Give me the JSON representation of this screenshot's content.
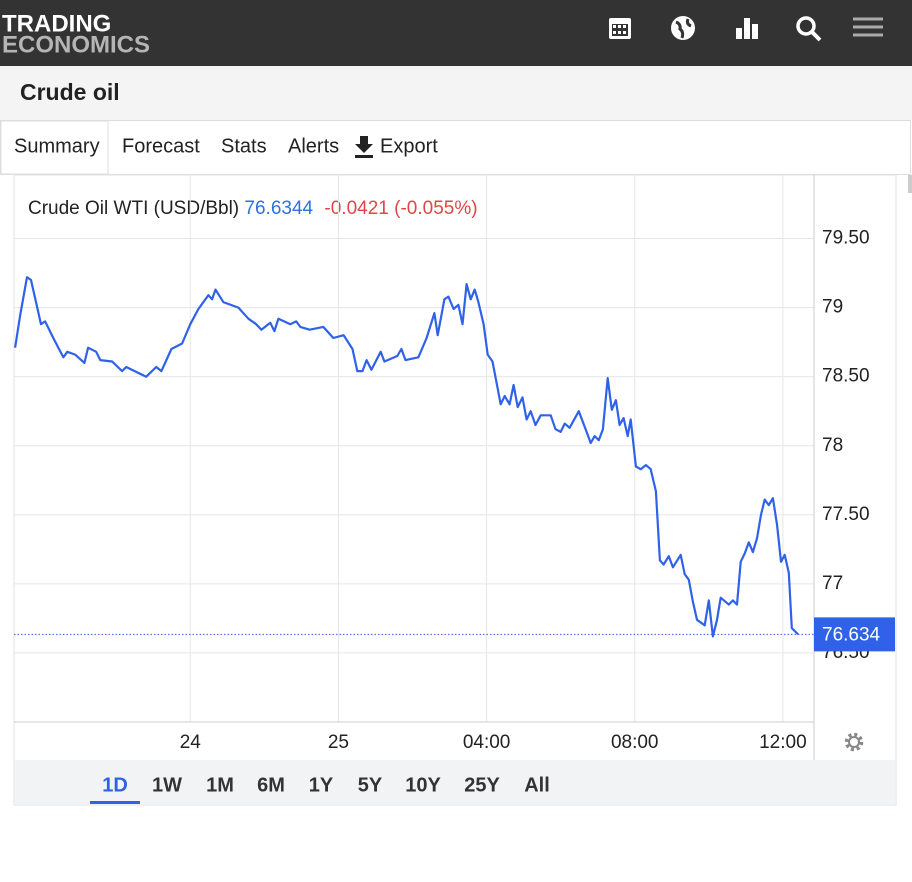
{
  "brand": {
    "line1": "TRADING",
    "line2": "ECONOMICS"
  },
  "page_title": "Crude oil",
  "tabs": [
    "Summary",
    "Forecast",
    "Stats",
    "Alerts",
    "Export"
  ],
  "selected_tab": 0,
  "ranges": [
    "1D",
    "1W",
    "1M",
    "6M",
    "1Y",
    "5Y",
    "10Y",
    "25Y",
    "All"
  ],
  "selected_range": 0,
  "chart_data": {
    "type": "line",
    "title": "Crude Oil WTI (USD/Bbl)",
    "last_value": 76.6344,
    "last_label": {
      "value": 76.6344,
      "label": "76.634"
    },
    "change": "-0.0421",
    "change_pct": "(-0.055%)",
    "xlim": [
      -8.76,
      12.84
    ],
    "xticks": [
      {
        "value": -4,
        "label": "24"
      },
      {
        "value": 0,
        "label": "25"
      },
      {
        "value": 4,
        "label": "04:00"
      },
      {
        "value": 8,
        "label": "08:00"
      },
      {
        "value": 12,
        "label": "12:00"
      }
    ],
    "ylim": [
      76.0,
      79.96
    ],
    "yticks": [
      {
        "value": 79.5,
        "label": "79.50"
      },
      79,
      {
        "value": 78.5,
        "label": "78.50"
      },
      78,
      {
        "value": 77.5,
        "label": "77.50"
      },
      77,
      {
        "value": 76.5,
        "label": "76.50"
      }
    ],
    "grid": true,
    "series": [
      {
        "name": "Crude Oil WTI",
        "color": "#2f62e8",
        "x": [
          -8.73,
          -8.59,
          -8.41,
          -8.3,
          -8.03,
          -7.92,
          -7.68,
          -7.43,
          -7.32,
          -7.11,
          -6.86,
          -6.76,
          -6.54,
          -6.43,
          -6.11,
          -5.84,
          -5.73,
          -5.35,
          -5.19,
          -4.92,
          -4.78,
          -4.51,
          -4.22,
          -4.0,
          -3.78,
          -3.51,
          -3.41,
          -3.32,
          -3.11,
          -2.7,
          -2.43,
          -2.22,
          -2.08,
          -1.84,
          -1.73,
          -1.62,
          -1.3,
          -1.14,
          -1.03,
          -0.78,
          -0.41,
          -0.14,
          0.14,
          0.38,
          0.51,
          0.65,
          0.76,
          0.89,
          1.14,
          1.24,
          1.59,
          1.7,
          1.81,
          2.16,
          2.38,
          2.59,
          2.68,
          2.86,
          2.97,
          3.11,
          3.24,
          3.35,
          3.46,
          3.57,
          3.68,
          3.78,
          3.92,
          4.03,
          4.16,
          4.38,
          4.49,
          4.62,
          4.73,
          4.84,
          4.97,
          5.08,
          5.19,
          5.32,
          5.46,
          5.73,
          5.86,
          6.0,
          6.11,
          6.24,
          6.49,
          6.7,
          6.81,
          6.92,
          7.03,
          7.14,
          7.27,
          7.38,
          7.49,
          7.59,
          7.7,
          7.81,
          7.89,
          8.03,
          8.16,
          8.3,
          8.43,
          8.57,
          8.68,
          8.78,
          8.92,
          9.03,
          9.24,
          9.35,
          9.46,
          9.57,
          9.68,
          9.89,
          10.0,
          10.11,
          10.22,
          10.32,
          10.54,
          10.65,
          10.76,
          10.86,
          10.97,
          11.08,
          11.19,
          11.3,
          11.41,
          11.51,
          11.62,
          11.73,
          11.84,
          11.95,
          12.05,
          12.16,
          12.24,
          12.41
        ],
        "values": [
          78.71,
          78.95,
          79.22,
          79.2,
          78.88,
          78.9,
          78.77,
          78.64,
          78.68,
          78.66,
          78.6,
          78.71,
          78.68,
          78.62,
          78.61,
          78.54,
          78.57,
          78.52,
          78.5,
          78.57,
          78.54,
          78.7,
          78.74,
          78.88,
          78.99,
          79.09,
          79.06,
          79.13,
          79.04,
          79.0,
          78.92,
          78.88,
          78.84,
          78.89,
          78.83,
          78.92,
          78.88,
          78.9,
          78.86,
          78.84,
          78.86,
          78.78,
          78.8,
          78.7,
          78.54,
          78.54,
          78.62,
          78.55,
          78.68,
          78.61,
          78.65,
          78.7,
          78.62,
          78.64,
          78.78,
          78.96,
          78.8,
          79.06,
          79.08,
          78.99,
          79.02,
          78.88,
          79.17,
          79.06,
          79.13,
          79.04,
          78.88,
          78.66,
          78.61,
          78.3,
          78.36,
          78.3,
          78.44,
          78.28,
          78.35,
          78.19,
          78.25,
          78.15,
          78.22,
          78.22,
          78.12,
          78.1,
          78.16,
          78.13,
          78.25,
          78.1,
          78.02,
          78.07,
          78.04,
          78.12,
          78.49,
          78.26,
          78.33,
          78.15,
          78.2,
          78.07,
          78.19,
          77.85,
          77.83,
          77.86,
          77.83,
          77.67,
          77.17,
          77.14,
          77.2,
          77.12,
          77.21,
          77.07,
          77.03,
          76.87,
          76.74,
          76.7,
          76.88,
          76.62,
          76.74,
          76.9,
          76.85,
          76.88,
          76.85,
          77.16,
          77.22,
          77.3,
          77.23,
          77.33,
          77.5,
          77.61,
          77.57,
          77.62,
          77.43,
          77.16,
          77.21,
          77.08,
          76.68,
          76.6344
        ]
      }
    ]
  }
}
